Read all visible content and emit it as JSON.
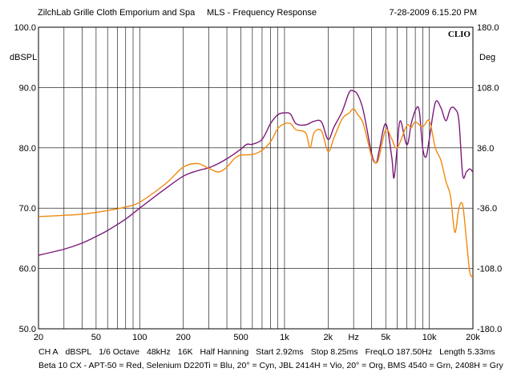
{
  "header": {
    "left": "ZilchLab Grille Cloth Emporium and Spa",
    "center": "MLS - Frequency Response",
    "right": "7-28-2009 6.15.20 PM"
  },
  "left_unit": "dBSPL",
  "right_unit": "Deg",
  "brand": "CLIO",
  "footer": {
    "items": [
      "CH A",
      "dBSPL",
      "1/6 Octave",
      "48kHz",
      "16K",
      "Half Hanning",
      "Start 2.92ms",
      "Stop 8.25ms",
      "FreqLO 187.50Hz",
      "Length 5.33ms"
    ],
    "legend": "Beta 10 CX - APT-50 = Red, Selenium D220Ti = Blu, 20° = Cyn, JBL 2414H = Vio, 20° = Org, BMS 4540 = Grn, 2408H = Gry"
  },
  "colors": {
    "purple": "#7b1a7b",
    "orange": "#f08a10",
    "grid": "#000000",
    "background": "#ffffff"
  },
  "chart_data": {
    "type": "line",
    "title": "MLS - Frequency Response",
    "xscale": "log",
    "xlim": [
      20,
      20000
    ],
    "ylim": [
      50,
      100
    ],
    "y2lim": [
      -180,
      180
    ],
    "grid": true,
    "x_tick_labels": [
      {
        "v": 20,
        "t": "20"
      },
      {
        "v": 50,
        "t": "50"
      },
      {
        "v": 100,
        "t": "100"
      },
      {
        "v": 200,
        "t": "200"
      },
      {
        "v": 500,
        "t": "500"
      },
      {
        "v": 1000,
        "t": "1k"
      },
      {
        "v": 2000,
        "t": "2k"
      },
      {
        "v": 3000,
        "t": "Hz"
      },
      {
        "v": 5000,
        "t": "5k"
      },
      {
        "v": 10000,
        "t": "10k"
      },
      {
        "v": 20000,
        "t": "20k"
      }
    ],
    "y_ticks": [
      100,
      90,
      80,
      70,
      60,
      50
    ],
    "y_tick_labels": [
      "100.0",
      "90.0",
      "80.0",
      "70.0",
      "60.0",
      "50.0"
    ],
    "y2_ticks": [
      180,
      108,
      36,
      -36,
      -108,
      -180
    ],
    "y2_tick_labels": [
      "180.0",
      "108.0",
      "36.0",
      "-36.0",
      "-108.0",
      "-180.0"
    ],
    "series": [
      {
        "color": "#7b1a7b",
        "x": [
          20,
          30,
          40,
          50,
          60,
          80,
          100,
          150,
          200,
          250,
          300,
          350,
          400,
          450,
          500,
          550,
          600,
          700,
          800,
          900,
          1000,
          1100,
          1200,
          1400,
          1600,
          1800,
          2000,
          2200,
          2500,
          2800,
          3000,
          3200,
          3500,
          4000,
          4300,
          4500,
          5000,
          5500,
          5700,
          6000,
          6300,
          7000,
          7500,
          8000,
          8500,
          9000,
          9500,
          10000,
          11000,
          12000,
          13000,
          14000,
          15000,
          16000,
          17000,
          18000,
          19000,
          20000
        ],
        "values": [
          62.2,
          63.2,
          64.2,
          65.3,
          66.3,
          68.2,
          70.0,
          73.2,
          75.3,
          76.2,
          76.7,
          77.4,
          78.2,
          79.0,
          79.8,
          80.6,
          80.6,
          81.4,
          84.0,
          85.5,
          85.8,
          85.6,
          84.0,
          83.8,
          84.4,
          84.3,
          81.4,
          83.5,
          86.0,
          89.2,
          89.4,
          88.8,
          86.2,
          79.0,
          77.5,
          79.5,
          84.0,
          78.5,
          75.0,
          80.0,
          84.5,
          80.5,
          84.0,
          86.2,
          86.3,
          80.0,
          78.5,
          81.5,
          87.5,
          86.7,
          84.5,
          86.5,
          86.5,
          84.5,
          75.5,
          76.0,
          76.5,
          76.0
        ]
      },
      {
        "color": "#f08a10",
        "x": [
          20,
          30,
          40,
          50,
          60,
          80,
          100,
          150,
          200,
          250,
          300,
          350,
          400,
          450,
          500,
          600,
          700,
          800,
          900,
          1000,
          1100,
          1200,
          1400,
          1500,
          1600,
          1800,
          2000,
          2200,
          2500,
          2800,
          3000,
          3200,
          3500,
          4000,
          4300,
          4500,
          5000,
          5500,
          6000,
          7000,
          7500,
          8000,
          9000,
          10000,
          11000,
          12000,
          13000,
          14000,
          15000,
          16000,
          17000,
          18000,
          19000,
          20000
        ],
        "values": [
          68.6,
          68.8,
          69.0,
          69.3,
          69.6,
          70.2,
          71.0,
          74.0,
          76.8,
          77.4,
          76.6,
          76.0,
          76.8,
          78.2,
          78.8,
          78.9,
          79.6,
          81.0,
          83.2,
          84.0,
          84.0,
          83.0,
          82.5,
          80.0,
          82.5,
          82.8,
          79.4,
          81.7,
          84.8,
          85.8,
          86.5,
          85.5,
          84.0,
          78.5,
          77.5,
          78.5,
          83.0,
          81.5,
          80.0,
          83.7,
          83.3,
          84.3,
          83.5,
          84.5,
          80.0,
          78.0,
          74.5,
          72.0,
          66.0,
          70.0,
          70.5,
          65.0,
          59.5,
          58.5
        ]
      }
    ]
  }
}
